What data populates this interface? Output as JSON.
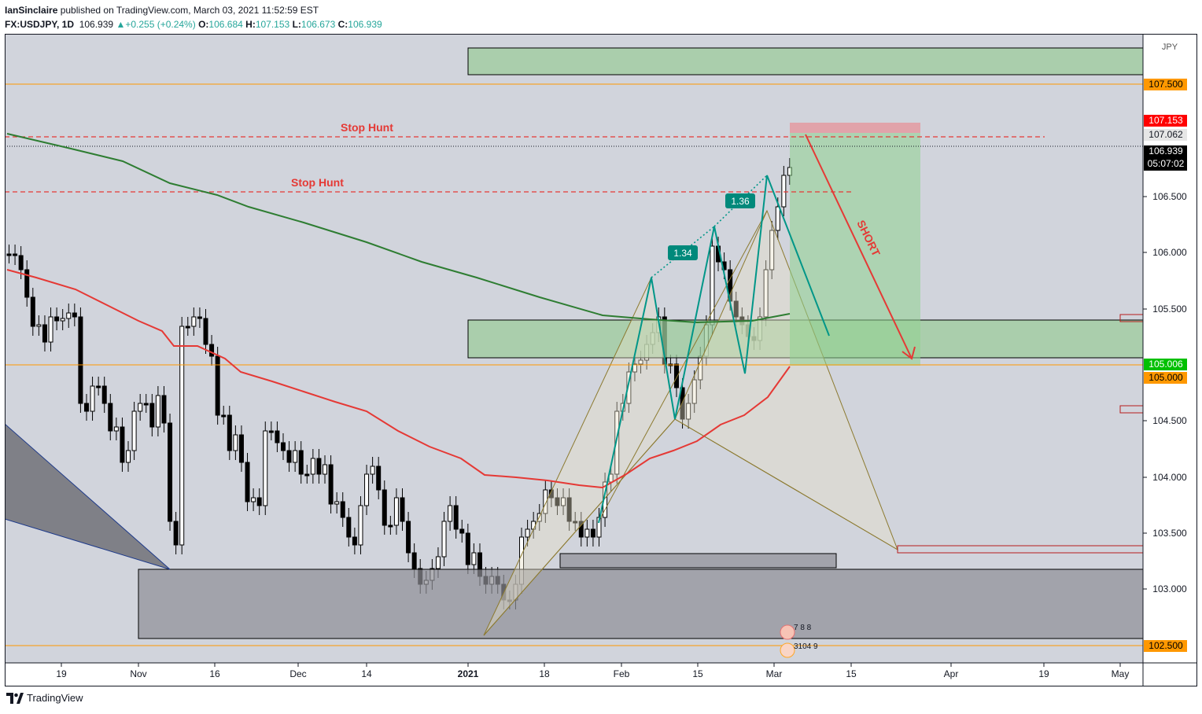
{
  "header": {
    "published_user": "IanSinclaire",
    "published_rest": " published on TradingView.com, March 03, 2021 11:52:59 EST",
    "symbol": "FX:USDJPY, 1D",
    "last": "106.939",
    "change": "+0.255 (+0.24%)",
    "open_label": "O:",
    "open": "106.684",
    "high_label": "H:",
    "high": "107.153",
    "low_label": "L:",
    "low": "106.673",
    "close_label": "C:",
    "close": "106.939"
  },
  "axis": {
    "currency": "JPY",
    "price_ticks": [
      "106.500",
      "106.000",
      "105.500",
      "104.500",
      "104.000",
      "103.500",
      "103.000"
    ],
    "time_ticks": [
      "19",
      "Nov",
      "16",
      "Dec",
      "14",
      "2021",
      "18",
      "Feb",
      "15",
      "Mar",
      "15",
      "Apr",
      "19",
      "May"
    ],
    "badges": [
      {
        "label": "107.500",
        "color": "#ff9800",
        "text_color": "#000000"
      },
      {
        "label": "107.153",
        "color": "#ff0000",
        "text_color": "#ffffff"
      },
      {
        "label": "107.062",
        "color": "#e6e6e6",
        "text_color": "#131722"
      },
      {
        "label": "106.939",
        "sub": "05:07:02",
        "color": "#000000",
        "text_color": "#ffffff"
      },
      {
        "label": "105.006",
        "color": "#00c000",
        "text_color": "#ffffff"
      },
      {
        "label": "105.000",
        "color": "#ff9800",
        "text_color": "#000000"
      },
      {
        "label": "102.500",
        "color": "#ff9800",
        "text_color": "#000000"
      }
    ]
  },
  "annotations": {
    "stop_hunt_upper": "Stop Hunt",
    "stop_hunt_lower": "Stop Hunt",
    "ratio_1": "1.34",
    "ratio_2": "1.36",
    "short_label": "SHORT",
    "events_1": "7 8 8",
    "events_2": "3104 9"
  },
  "colors": {
    "chart_bg": "#d1d4dc",
    "ma_fast": "#e53935",
    "ma_slow": "#2e7d32",
    "harmonic": "#009688",
    "zone_green": "#9ccc9c",
    "zone_grey": "#9e9fa6",
    "short_arrow": "#e53935"
  },
  "footer": {
    "brand": "TradingView"
  }
}
